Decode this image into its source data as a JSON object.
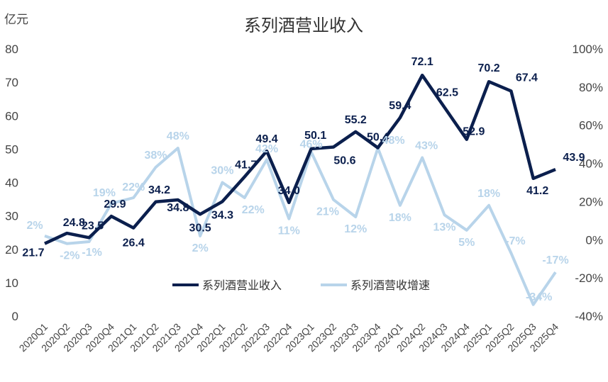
{
  "chart_data": {
    "type": "line",
    "title": "系列酒营业收入",
    "left_axis_unit": "亿元",
    "categories": [
      "2020Q1",
      "2020Q2",
      "2020Q3",
      "2020Q4",
      "2021Q1",
      "2021Q2",
      "2021Q3",
      "2021Q4",
      "2022Q1",
      "2022Q2",
      "2022Q3",
      "2022Q4",
      "2023Q1",
      "2023Q2",
      "2023Q3",
      "2023Q4",
      "2024Q1",
      "2024Q2",
      "2024Q3",
      "2024Q4",
      "2025Q1",
      "2025Q2",
      "2025Q3",
      "2025Q4"
    ],
    "y_left": {
      "min": 0,
      "max": 80,
      "ticks": [
        "0",
        "10",
        "20",
        "30",
        "40",
        "50",
        "60",
        "70",
        "80"
      ]
    },
    "y_right": {
      "min": -40,
      "max": 100,
      "ticks": [
        "-40%",
        "-20%",
        "0%",
        "20%",
        "40%",
        "60%",
        "80%",
        "100%"
      ]
    },
    "legend_position": "bottom-center",
    "colors": {
      "revenue": "#0b1f4d",
      "growth": "#b8d4ea"
    },
    "series": [
      {
        "name": "系列酒营业收入",
        "axis": "left",
        "values": [
          21.7,
          24.8,
          23.5,
          29.9,
          26.4,
          34.2,
          34.8,
          30.5,
          34.3,
          41.7,
          49.4,
          34.0,
          50.1,
          50.6,
          55.2,
          50.4,
          59.4,
          72.1,
          62.5,
          52.9,
          70.2,
          67.4,
          41.2,
          43.9
        ],
        "labels": [
          "21.7",
          "24.8",
          "23.5",
          "29.9",
          "26.4",
          "34.2",
          "34.8",
          "30.5",
          "34.3",
          "41.7",
          "49.4",
          "34.0",
          "50.1",
          "50.6",
          "55.2",
          "50.4",
          "59.4",
          "72.1",
          "62.5",
          "52.9",
          "70.2",
          "67.4",
          "41.2",
          "43.9"
        ]
      },
      {
        "name": "系列酒营收增速",
        "axis": "right",
        "values": [
          2,
          -2,
          -1,
          19,
          22,
          38,
          48,
          2,
          30,
          22,
          42,
          11,
          46,
          21,
          12,
          48,
          18,
          43,
          13,
          5,
          18,
          -7,
          -34,
          -17
        ],
        "labels": [
          "2%",
          "-2%",
          "-1%",
          "19%",
          "22%",
          "38%",
          "48%",
          "2%",
          "30%",
          "22%",
          "42%",
          "11%",
          "46%",
          "21%",
          "12%",
          "48%",
          "18%",
          "43%",
          "13%",
          "5%",
          "18%",
          "-7%",
          "-34%",
          "-17%"
        ]
      }
    ]
  }
}
